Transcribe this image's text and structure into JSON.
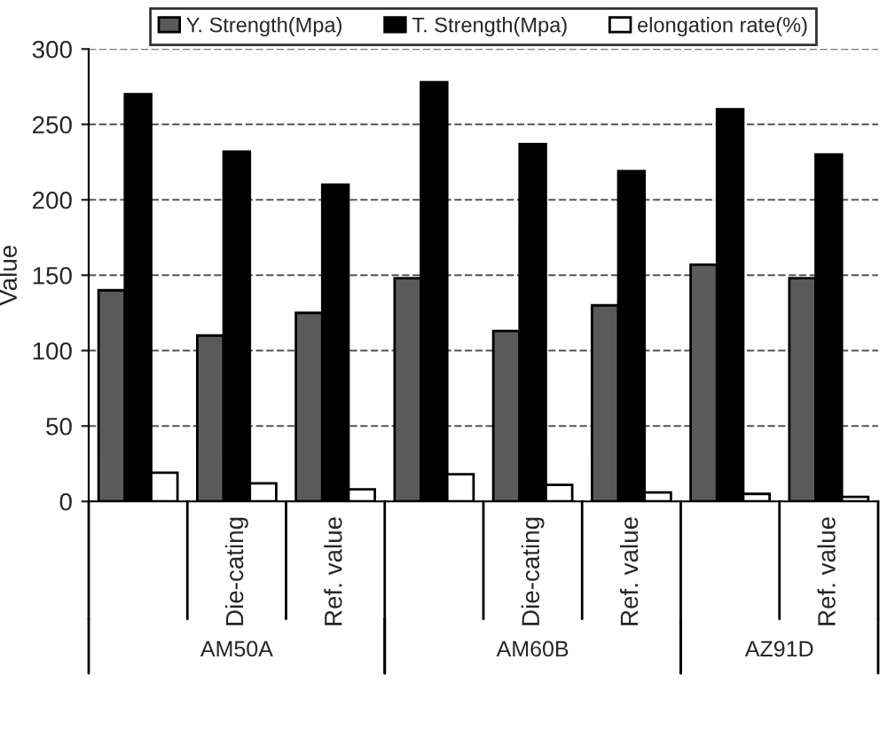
{
  "chart_data": {
    "type": "bar",
    "ylabel": "Value",
    "categories": [
      null,
      "Die-cating",
      "Ref. value",
      null,
      "Die-cating",
      "Ref. value",
      null,
      "Ref. value"
    ],
    "series": [
      {
        "name": "Y. Strength(Mpa)",
        "color": "#5a5a5a",
        "values": [
          140,
          110,
          125,
          148,
          113,
          130,
          157,
          148
        ]
      },
      {
        "name": "T. Strength(Mpa)",
        "color": "#000000",
        "values": [
          270,
          232,
          210,
          278,
          237,
          219,
          260,
          230
        ]
      },
      {
        "name": "elongation rate(%)",
        "color": "#ffffff",
        "values": [
          19,
          12,
          8,
          18,
          11,
          6,
          5,
          3
        ]
      }
    ],
    "annotations": [
      "AM50A",
      "AM60B",
      "AZ91D"
    ],
    "ylim": [
      0,
      300
    ],
    "yticks": [
      0,
      50,
      100,
      150,
      200,
      250,
      300
    ],
    "grid": "y",
    "legend": "top"
  }
}
